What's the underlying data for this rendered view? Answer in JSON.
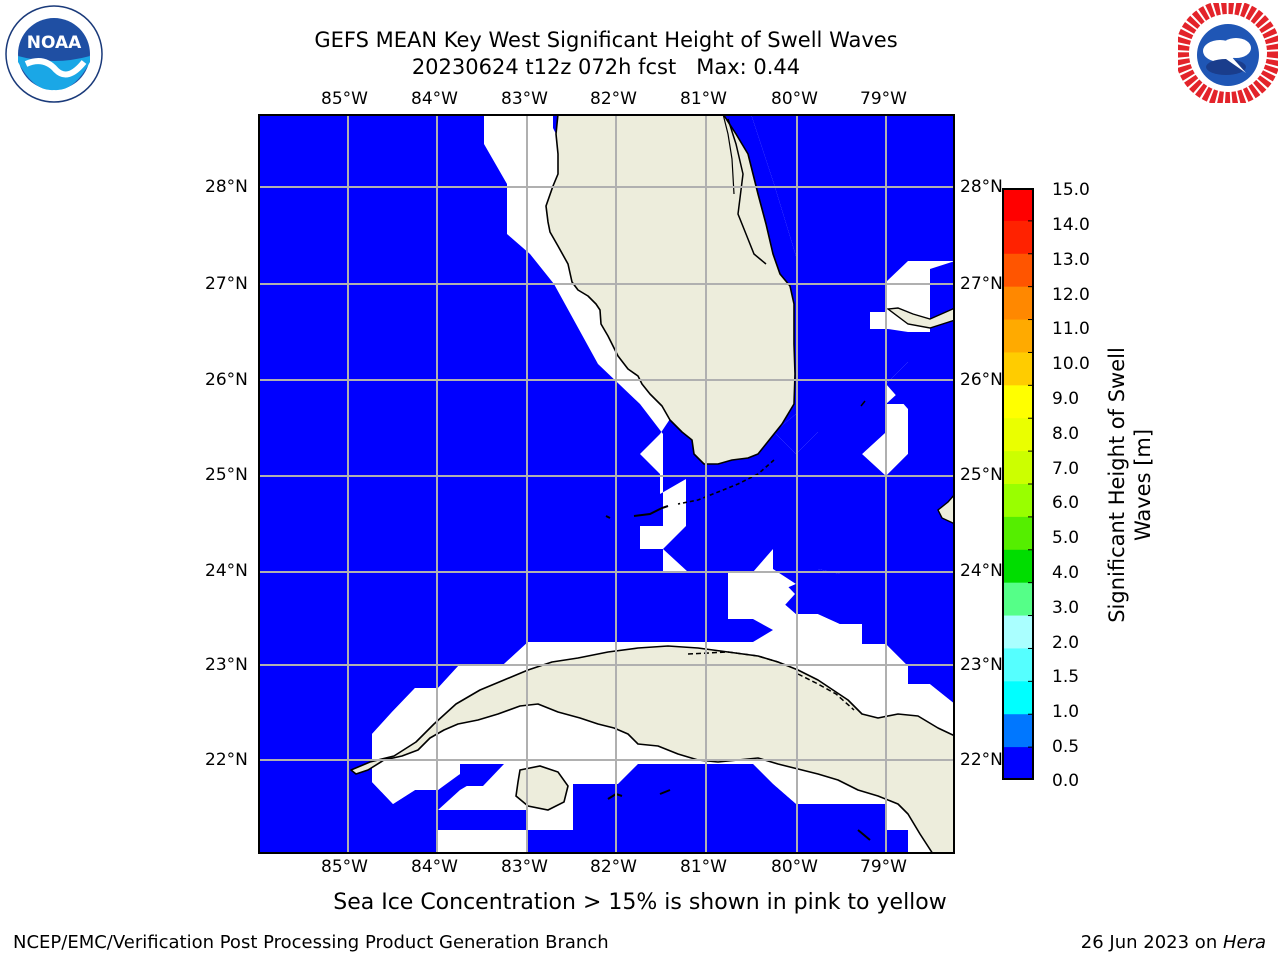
{
  "title": {
    "line1": "GEFS MEAN Key West Significant Height of Swell Waves",
    "line2": "20230624 t12z 072h fcst   Max: 0.44"
  },
  "logos": {
    "left": "NOAA",
    "left_ring": "NATIONAL OCEANIC AND ATMOSPHERIC ADMINISTRATION · U.S. DEPARTMENT OF COMMERCE",
    "right_ring": "NATIONAL WEATHER SERVICE"
  },
  "axes": {
    "lon_labels": [
      "85°W",
      "84°W",
      "83°W",
      "82°W",
      "81°W",
      "80°W",
      "79°W"
    ],
    "lat_labels": [
      "28°N",
      "27°N",
      "26°N",
      "25°N",
      "24°N",
      "23°N",
      "22°N"
    ]
  },
  "colorbar": {
    "label_line1": "Significant Height of Swell",
    "label_line2": "Waves [m]",
    "ticks": [
      "15.0",
      "14.0",
      "13.0",
      "12.0",
      "11.0",
      "10.0",
      "9.0",
      "8.0",
      "7.0",
      "6.0",
      "5.0",
      "4.0",
      "3.0",
      "2.0",
      "1.5",
      "1.0",
      "0.5",
      "0.0"
    ],
    "colors_top_to_bottom": [
      "#ff0000",
      "#ff2200",
      "#ff5500",
      "#ff8800",
      "#ffaa00",
      "#ffcc00",
      "#ffff00",
      "#eaff00",
      "#ccff00",
      "#99ff00",
      "#55ee00",
      "#00dd00",
      "#55ff88",
      "#aaffff",
      "#55ffff",
      "#00ffff",
      "#0077ff",
      "#0000ff"
    ]
  },
  "colors": {
    "ocean": "#0000ff",
    "land": "#ededdc",
    "no_data": "#ffffff",
    "grid": "#b0b0b0"
  },
  "caption": "Sea Ice Concentration > 15% is shown in pink to yellow",
  "footer": {
    "left": "NCEP/EMC/Verification Post Processing Product Generation Branch",
    "right_prefix": "26 Jun 2023 on ",
    "right_host": "Hera"
  }
}
